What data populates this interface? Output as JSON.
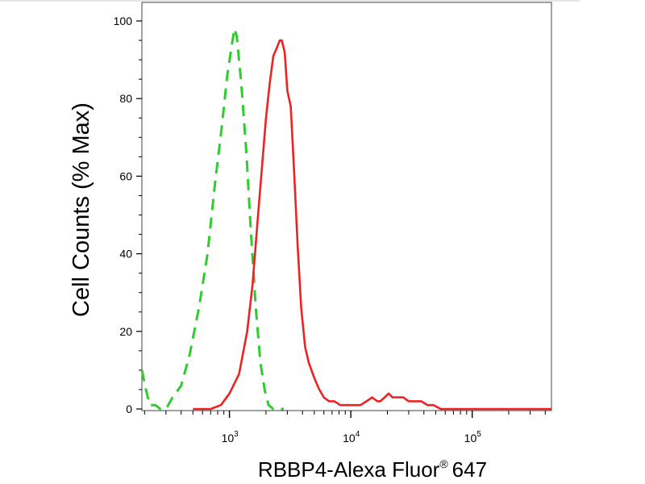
{
  "chart_data": {
    "type": "line",
    "ylabel": "Cell Counts (% Max)",
    "xlabel": "RBBP4-Alexa Fluor",
    "xlabel_mark": "®",
    "xlabel_suffix": "647",
    "x_scale": "log",
    "xlim": [
      190,
      450000
    ],
    "ylim": [
      0,
      105
    ],
    "yticks": [
      0,
      20,
      40,
      60,
      80,
      100
    ],
    "ytick_labels": [
      "0",
      "20",
      "40",
      "60",
      "80",
      "100"
    ],
    "xticks": [
      {
        "value": 1000,
        "base": "10",
        "exp": "3"
      },
      {
        "value": 10000,
        "base": "10",
        "exp": "4"
      },
      {
        "value": 100000,
        "base": "10",
        "exp": "5"
      }
    ],
    "grid": false,
    "series": [
      {
        "color": "#2ecc2e",
        "style": "dashed",
        "x": [
          190,
          205,
          220,
          245,
          270,
          300,
          340,
          400,
          470,
          560,
          660,
          760,
          860,
          960,
          1060,
          1100,
          1150,
          1250,
          1380,
          1500,
          1650,
          1800,
          1950,
          2100,
          2300,
          2500,
          2800
        ],
        "y": [
          10,
          5,
          1,
          1,
          0,
          0,
          3,
          6,
          14,
          26,
          40,
          58,
          72,
          86,
          95,
          98,
          96,
          84,
          66,
          46,
          26,
          12,
          5,
          1,
          0,
          0,
          0
        ]
      },
      {
        "color": "#ee2222",
        "style": "solid",
        "x": [
          500,
          600,
          700,
          850,
          1000,
          1200,
          1400,
          1550,
          1700,
          1850,
          2000,
          2150,
          2300,
          2450,
          2600,
          2700,
          2850,
          3000,
          3200,
          3400,
          3650,
          3900,
          4200,
          4500,
          5000,
          5500,
          6000,
          6600,
          7300,
          8200,
          9000,
          10000,
          11000,
          12000,
          13500,
          15000,
          16500,
          17500,
          19000,
          20500,
          22000,
          24000,
          27000,
          30000,
          34000,
          38000,
          43000,
          48000,
          55000,
          62000,
          70000,
          80000,
          95000,
          120000,
          200000,
          450000
        ],
        "y": [
          0,
          0,
          0,
          1,
          4,
          9,
          20,
          32,
          48,
          62,
          75,
          84,
          91,
          93,
          95,
          95,
          92,
          82,
          78,
          62,
          42,
          26,
          16,
          12,
          8,
          5,
          3,
          2,
          2,
          1,
          1,
          1,
          1,
          1,
          2,
          3,
          2,
          2,
          3,
          4,
          3,
          3,
          3,
          2,
          2,
          2,
          1,
          1,
          0,
          0,
          0,
          0,
          0,
          0,
          0,
          0
        ]
      }
    ]
  }
}
